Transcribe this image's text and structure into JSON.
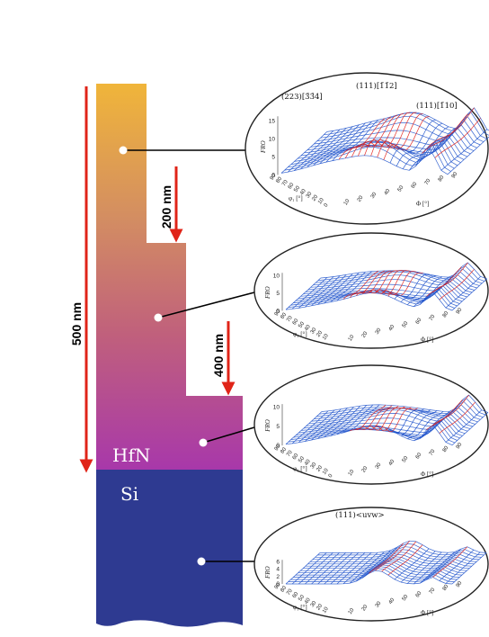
{
  "layers": {
    "film": "HfN",
    "substrate": "Si"
  },
  "thickness_markers": [
    {
      "label": "500 nm"
    },
    {
      "label": "200 nm"
    },
    {
      "label": "400 nm"
    }
  ],
  "plot_axis": {
    "z_label": "FRO",
    "phi_label": "Φ [°]",
    "phi1_label": "φ₁ [°]",
    "phi_ticks": [
      "10",
      "20",
      "30",
      "40",
      "50",
      "60",
      "70",
      "80",
      "90"
    ],
    "phi1_ticks": [
      "90",
      "80",
      "70",
      "60",
      "50",
      "40",
      "30",
      "20",
      "10",
      "0"
    ]
  },
  "polefigures": [
    {
      "level": "top",
      "z_ticks": [
        "0",
        "5",
        "10",
        "15"
      ],
      "annotations": [
        "(223)[3̄3̄4]",
        "(111)[1̄1̄2]",
        "(111)[1̄10]"
      ]
    },
    {
      "level": "upper-middle",
      "z_ticks": [
        "0",
        "5",
        "10"
      ],
      "annotations": []
    },
    {
      "level": "lower-middle",
      "z_ticks": [
        "0",
        "5",
        "10"
      ],
      "annotations": []
    },
    {
      "level": "substrate",
      "z_ticks": [
        "0",
        "2",
        "4",
        "6"
      ],
      "annotations": [
        "(111)<uvw>"
      ]
    }
  ],
  "colors": {
    "film_top": "#f0b53a",
    "film_mid": "#c77080",
    "film_bottom": "#a83aa8",
    "substrate": "#2e3a91",
    "arrow": "#e02418",
    "mesh": "#2255cc",
    "peak": "#e3241c"
  }
}
